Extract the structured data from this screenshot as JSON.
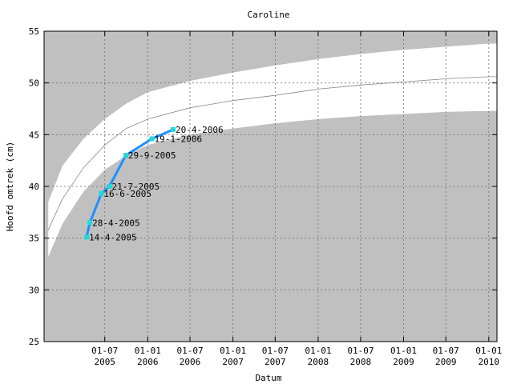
{
  "chart_data": {
    "type": "line",
    "title": "Caroline",
    "xlabel": "Datum",
    "ylabel": "Hoofd omtrek (cm)",
    "ylim": [
      25,
      55
    ],
    "y_ticks": [
      25,
      30,
      35,
      40,
      45,
      50,
      55
    ],
    "x_axis": {
      "start": "2004-10-14",
      "end": "2010-02-05",
      "ticks": [
        {
          "date": "2005-07-01",
          "top": "01-07",
          "bottom": "2005"
        },
        {
          "date": "2006-01-01",
          "top": "01-01",
          "bottom": "2006"
        },
        {
          "date": "2006-07-01",
          "top": "01-07",
          "bottom": "2006"
        },
        {
          "date": "2007-01-01",
          "top": "01-01",
          "bottom": "2007"
        },
        {
          "date": "2007-07-01",
          "top": "01-07",
          "bottom": "2007"
        },
        {
          "date": "2008-01-01",
          "top": "01-01",
          "bottom": "2008"
        },
        {
          "date": "2008-07-01",
          "top": "01-07",
          "bottom": "2008"
        },
        {
          "date": "2009-01-01",
          "top": "01-01",
          "bottom": "2009"
        },
        {
          "date": "2009-07-01",
          "top": "01-07",
          "bottom": "2009"
        },
        {
          "date": "2010-01-01",
          "top": "01-01",
          "bottom": "2010"
        }
      ]
    },
    "grid": true,
    "colors": {
      "band_fill": "#c0c0c0",
      "series_line": "#1e90ff",
      "point_fill": "#20d8d8",
      "reference_line": "#888888"
    },
    "reference_bands": {
      "x": [
        "2004-11-01",
        "2005-01-01",
        "2005-04-01",
        "2005-07-01",
        "2005-10-01",
        "2006-01-01",
        "2006-07-01",
        "2007-01-01",
        "2007-07-01",
        "2008-01-01",
        "2008-07-01",
        "2009-01-01",
        "2009-07-01",
        "2010-01-01",
        "2010-02-05"
      ],
      "upper": [
        38.5,
        42.0,
        44.6,
        46.5,
        48.0,
        49.1,
        50.2,
        51.0,
        51.7,
        52.3,
        52.8,
        53.2,
        53.5,
        53.8,
        53.8
      ],
      "median": [
        35.8,
        38.8,
        41.8,
        44.0,
        45.6,
        46.5,
        47.6,
        48.3,
        48.8,
        49.4,
        49.8,
        50.1,
        50.4,
        50.6,
        50.6
      ],
      "lower": [
        33.2,
        36.4,
        39.5,
        41.6,
        43.0,
        44.0,
        45.0,
        45.6,
        46.1,
        46.5,
        46.8,
        47.0,
        47.2,
        47.3,
        47.3
      ]
    },
    "series": [
      {
        "points": [
          {
            "x": "2005-04-14",
            "y": 35.1,
            "label": "14-4-2005"
          },
          {
            "x": "2005-04-28",
            "y": 36.5,
            "label": "28-4-2005"
          },
          {
            "x": "2005-06-16",
            "y": 39.3,
            "label": "16-6-2005"
          },
          {
            "x": "2005-07-21",
            "y": 40.0,
            "label": "21-7-2005"
          },
          {
            "x": "2005-09-29",
            "y": 43.0,
            "label": "29-9-2005"
          },
          {
            "x": "2006-01-19",
            "y": 44.6,
            "label": "19-1-2006"
          },
          {
            "x": "2006-04-20",
            "y": 45.5,
            "label": "20-4-2006"
          }
        ]
      }
    ]
  }
}
